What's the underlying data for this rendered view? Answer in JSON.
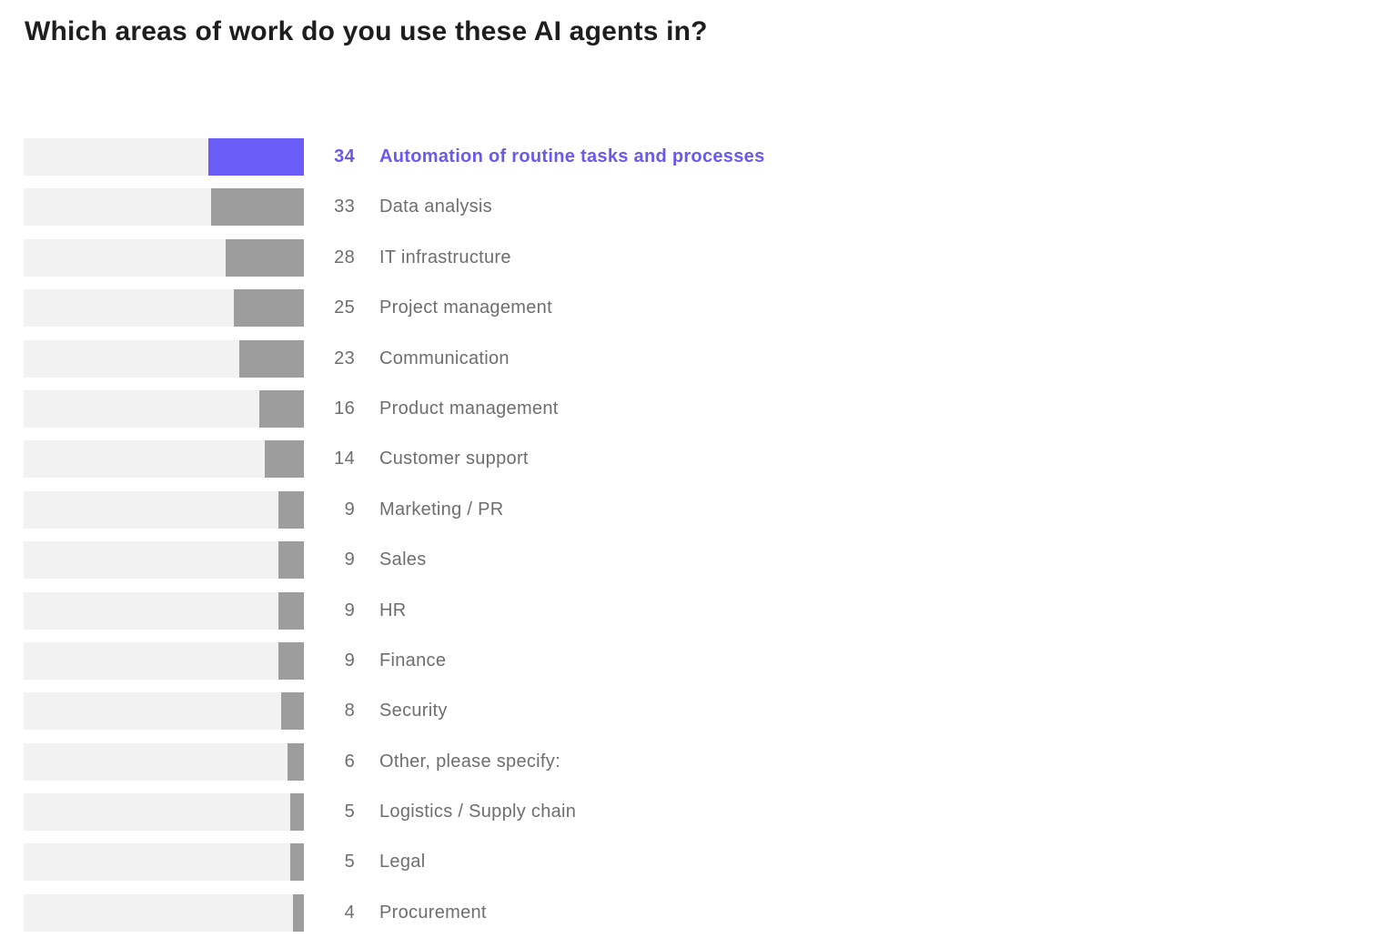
{
  "title": "Which areas of work do you use these AI agents in?",
  "chart_data": {
    "type": "bar",
    "orientation": "horizontal",
    "title": "Which areas of work do you use these AI agents in?",
    "xlabel": "",
    "ylabel": "",
    "xlim": [
      0,
      100
    ],
    "grid": false,
    "legend": false,
    "value_labels_position": "right-of-bar",
    "bars_anchored": "right",
    "categories": [
      "Automation of routine tasks and processes",
      "Data analysis",
      "IT infrastructure",
      "Project management",
      "Communication",
      "Product management",
      "Customer support",
      "Marketing / PR",
      "Sales",
      "HR",
      "Finance",
      "Security",
      "Other, please specify:",
      "Logistics / Supply chain",
      "Legal",
      "Procurement"
    ],
    "values": [
      34,
      33,
      28,
      25,
      23,
      16,
      14,
      9,
      9,
      9,
      9,
      8,
      6,
      5,
      5,
      4
    ],
    "highlighted_index": 0,
    "colors": {
      "highlight_bar": "#6A5CF6",
      "highlight_text": "#685AEE",
      "bar": "#9D9D9D",
      "track": "#F2F2F2",
      "row_text": "#6E6E6E",
      "title_text": "#1E1E1E"
    }
  }
}
